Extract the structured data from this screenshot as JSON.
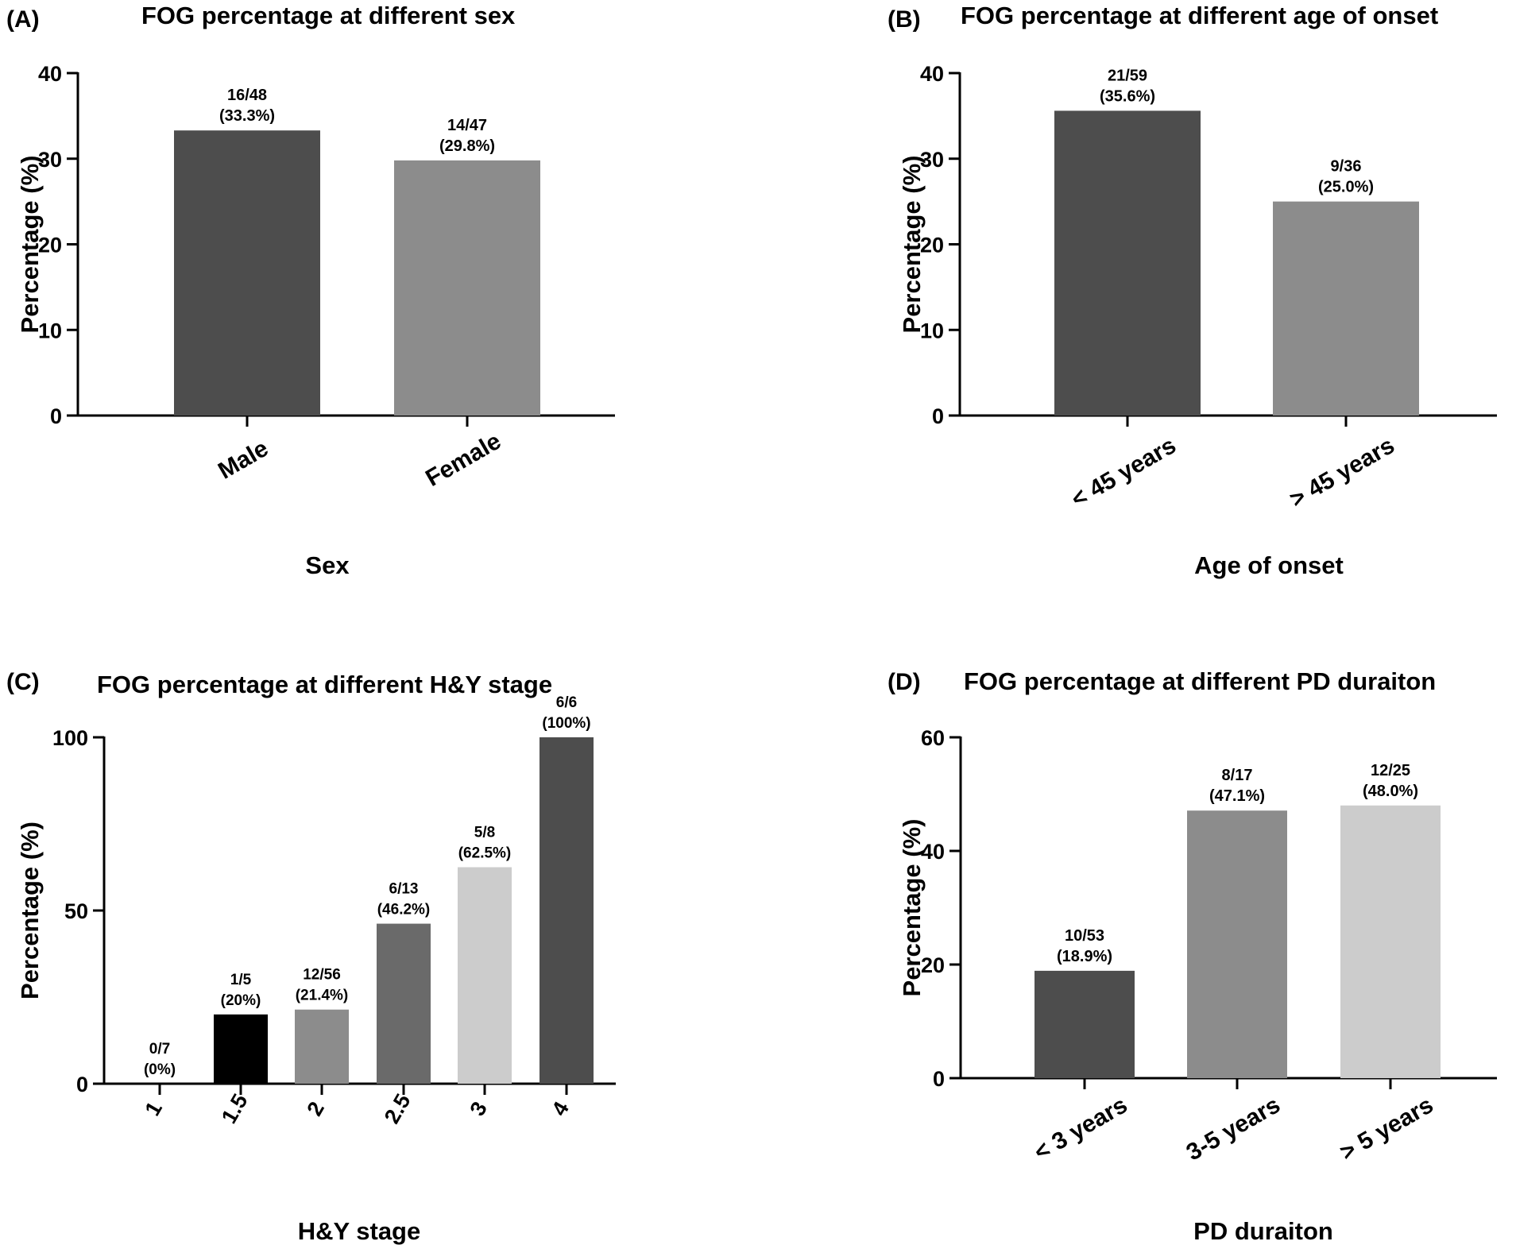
{
  "chart_data": [
    {
      "type": "bar",
      "panel_label": "(A)",
      "title": "FOG percentage at different sex",
      "xlabel": "Sex",
      "ylabel": "Percentage (%)",
      "ylim": [
        0,
        40
      ],
      "yticks": [
        "0",
        "10",
        "20",
        "30",
        "40"
      ],
      "categories": [
        "Male",
        "Female"
      ],
      "values": [
        33.3,
        29.8
      ],
      "data_labels": [
        [
          "16/48",
          "(33.3%)"
        ],
        [
          "14/47",
          "(29.8%)"
        ]
      ],
      "colors": [
        "#4d4d4d",
        "#8c8c8c"
      ],
      "grid": false
    },
    {
      "type": "bar",
      "panel_label": "(B)",
      "title": "FOG percentage at different age of onset",
      "xlabel": "Age of onset",
      "ylabel": "Percentage (%)",
      "ylim": [
        0,
        40
      ],
      "yticks": [
        "0",
        "10",
        "20",
        "30",
        "40"
      ],
      "categories": [
        "< 45 years",
        "> 45 years"
      ],
      "values": [
        35.6,
        25.0
      ],
      "data_labels": [
        [
          "21/59",
          "(35.6%)"
        ],
        [
          "9/36",
          "(25.0%)"
        ]
      ],
      "colors": [
        "#4d4d4d",
        "#8c8c8c"
      ],
      "grid": false
    },
    {
      "type": "bar",
      "panel_label": "(C)",
      "title": "FOG percentage at different H&Y stage",
      "xlabel": "H&Y stage",
      "ylabel": "Percentage (%)",
      "ylim": [
        0,
        100
      ],
      "yticks": [
        "0",
        "50",
        "100"
      ],
      "categories": [
        "1",
        "1.5",
        "2",
        "2.5",
        "3",
        "4"
      ],
      "values": [
        0,
        20,
        21.4,
        46.2,
        62.5,
        100
      ],
      "data_labels": [
        [
          "0/7",
          "(0%)"
        ],
        [
          "1/5",
          "(20%)"
        ],
        [
          "12/56",
          "(21.4%)"
        ],
        [
          "6/13",
          "(46.2%)"
        ],
        [
          "5/8",
          "(62.5%)"
        ],
        [
          "6/6",
          "(100%)"
        ]
      ],
      "colors": [
        "#ffffff",
        "#000000",
        "#8c8c8c",
        "#6a6a6a",
        "#cccccc",
        "#4d4d4d"
      ],
      "grid": false
    },
    {
      "type": "bar",
      "panel_label": "(D)",
      "title": "FOG percentage at different PD duraiton",
      "xlabel": "PD duraiton",
      "ylabel": "Percentage (%)",
      "ylim": [
        0,
        60
      ],
      "yticks": [
        "0",
        "20",
        "40",
        "60"
      ],
      "categories": [
        "< 3 years",
        "3-5 years",
        "> 5 years"
      ],
      "values": [
        18.9,
        47.1,
        48.0
      ],
      "data_labels": [
        [
          "10/53",
          "(18.9%)"
        ],
        [
          "8/17",
          "(47.1%)"
        ],
        [
          "12/25",
          "(48.0%)"
        ]
      ],
      "colors": [
        "#4d4d4d",
        "#8c8c8c",
        "#cccccc"
      ],
      "grid": false
    }
  ]
}
